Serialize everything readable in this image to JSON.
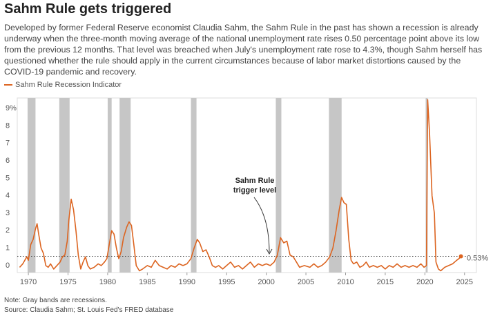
{
  "chart_data": {
    "type": "line",
    "title": "Sahm Rule gets triggered",
    "subtitle": "Developed by former Federal Reserve economist Claudia Sahm, the Sahm Rule in the past has shown a recession is already underway when the three-month moving average of the national unemployment rate rises 0.50 percentage point above its low from the previous 12 months. That level was breached when July's unemployment rate rose to 4.3%, though Sahm herself has questioned whether the rule should apply in the current circumstances because of labor market distortions caused by the COVID-19 pandemic and recovery.",
    "notes": [
      "Note: Gray bands are recessions.",
      "Source: Claudia Sahm; St. Louis Fed's FRED database"
    ],
    "annotation": [
      "Sahm Rule",
      "trigger level"
    ],
    "threshold": {
      "value": 0.53,
      "label": "0.53%"
    },
    "recession_color": "#c6c6c6",
    "recessions": [
      [
        1969.9,
        1970.9
      ],
      [
        1973.9,
        1975.2
      ],
      [
        1980.0,
        1980.5
      ],
      [
        1981.5,
        1982.9
      ],
      [
        1990.5,
        1991.2
      ],
      [
        2001.2,
        2001.9
      ],
      [
        2007.9,
        2009.5
      ],
      [
        2020.1,
        2020.35
      ]
    ],
    "x": [
      1968.9,
      1969.3,
      1969.8,
      1970.0,
      1970.3,
      1970.6,
      1970.9,
      1971.1,
      1971.3,
      1971.6,
      1971.9,
      1972.2,
      1972.5,
      1972.8,
      1973.2,
      1973.6,
      1974.0,
      1974.3,
      1974.6,
      1974.9,
      1975.1,
      1975.4,
      1975.7,
      1976.0,
      1976.3,
      1976.6,
      1976.9,
      1977.2,
      1977.5,
      1977.8,
      1978.3,
      1978.8,
      1979.2,
      1979.6,
      1979.9,
      1980.2,
      1980.5,
      1980.8,
      1981.1,
      1981.4,
      1981.7,
      1982.0,
      1982.4,
      1982.7,
      1983.0,
      1983.3,
      1983.6,
      1984.0,
      1984.4,
      1985.0,
      1985.5,
      1986.0,
      1986.5,
      1987.0,
      1987.5,
      1988.0,
      1988.5,
      1989.0,
      1989.5,
      1990.0,
      1990.5,
      1990.9,
      1991.3,
      1991.6,
      1992.0,
      1992.4,
      1992.8,
      1993.2,
      1993.6,
      1994.0,
      1994.5,
      1995.0,
      1995.5,
      1996.0,
      1996.5,
      1997.0,
      1997.5,
      1998.0,
      1998.5,
      1999.0,
      1999.5,
      2000.0,
      2000.5,
      2001.0,
      2001.4,
      2001.8,
      2002.2,
      2002.6,
      2003.0,
      2003.4,
      2003.8,
      2004.2,
      2004.8,
      2005.5,
      2006.0,
      2006.5,
      2007.0,
      2007.5,
      2008.0,
      2008.4,
      2008.8,
      2009.2,
      2009.5,
      2009.8,
      2010.1,
      2010.4,
      2010.7,
      2011.0,
      2011.4,
      2011.8,
      2012.2,
      2012.6,
      2013.0,
      2013.5,
      2014.0,
      2014.5,
      2015.0,
      2015.5,
      2016.0,
      2016.5,
      2017.0,
      2017.5,
      2018.0,
      2018.5,
      2019.0,
      2019.5,
      2019.9,
      2020.2,
      2020.35,
      2020.6,
      2020.9,
      2021.2,
      2021.4,
      2021.7,
      2022.0,
      2022.5,
      2023.0,
      2023.5,
      2024.0,
      2024.3,
      2024.55
    ],
    "series": [
      {
        "name": "Sahm Rule Recession Indicator",
        "color": "#dc6420",
        "values": [
          -0.1,
          0.1,
          0.5,
          0.3,
          1.2,
          1.5,
          2.1,
          2.4,
          1.8,
          1.0,
          0.7,
          0.0,
          -0.1,
          0.1,
          -0.2,
          0.0,
          0.2,
          0.5,
          0.6,
          1.4,
          2.6,
          3.8,
          3.2,
          2.0,
          0.6,
          -0.2,
          0.2,
          0.5,
          0.0,
          -0.2,
          -0.1,
          0.1,
          0.0,
          0.2,
          0.4,
          1.2,
          2.0,
          1.8,
          1.0,
          0.4,
          0.8,
          1.6,
          2.2,
          2.5,
          2.3,
          1.2,
          0.0,
          -0.3,
          -0.2,
          0.0,
          -0.1,
          0.3,
          0.0,
          -0.1,
          -0.2,
          0.0,
          -0.1,
          0.1,
          0.0,
          0.1,
          0.4,
          1.0,
          1.5,
          1.3,
          0.8,
          0.9,
          0.5,
          0.0,
          -0.1,
          0.0,
          -0.2,
          0.0,
          0.2,
          -0.1,
          0.0,
          -0.2,
          0.0,
          0.2,
          -0.1,
          0.1,
          0.0,
          0.1,
          0.0,
          0.2,
          0.6,
          1.6,
          1.3,
          1.4,
          0.6,
          0.5,
          0.2,
          -0.1,
          0.0,
          -0.1,
          0.1,
          -0.1,
          0.0,
          0.2,
          0.5,
          1.0,
          2.0,
          3.2,
          3.9,
          3.6,
          3.5,
          1.5,
          0.3,
          0.1,
          0.2,
          -0.1,
          0.0,
          0.2,
          -0.1,
          0.0,
          -0.1,
          0.0,
          -0.2,
          0.0,
          -0.1,
          0.1,
          -0.1,
          0.0,
          -0.1,
          0.0,
          -0.1,
          0.1,
          -0.1,
          0.0,
          9.5,
          7.5,
          4.0,
          3.0,
          0.2,
          -0.2,
          -0.3,
          -0.1,
          0.0,
          0.1,
          0.3,
          0.4,
          0.53
        ]
      }
    ],
    "xlim": [
      1968.6,
      2026.5
    ],
    "xticks": [
      1970,
      1975,
      1980,
      1985,
      1990,
      1995,
      2000,
      2005,
      2010,
      2015,
      2020,
      2025
    ],
    "ylim": [
      -0.4,
      9.6
    ],
    "yticks": [
      0,
      1,
      2,
      3,
      4,
      5,
      6,
      7,
      8,
      {
        "value": 9,
        "label": "9%"
      }
    ]
  }
}
